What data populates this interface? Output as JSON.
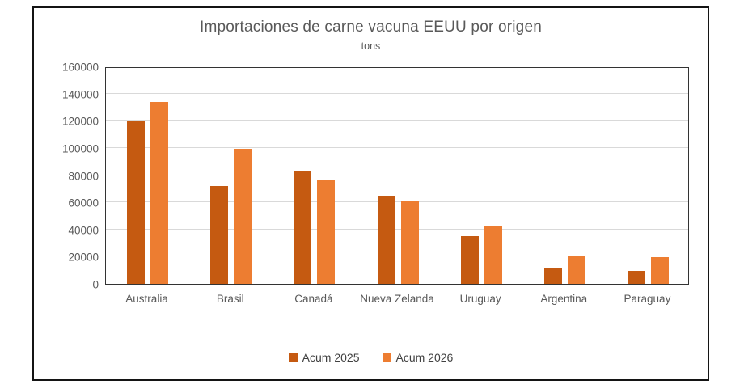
{
  "figure": {
    "title": "Importaciones de carne vacuna EEUU por origen",
    "subtitle": "tons"
  },
  "chart_data": {
    "type": "bar",
    "title": "Importaciones de carne vacuna EEUU por origen",
    "subtitle": "tons",
    "categories": [
      "Australia",
      "Brasil",
      "Canadá",
      "Nueva Zelanda",
      "Uruguay",
      "Argentina",
      "Paraguay"
    ],
    "series": [
      {
        "name": "Acum 2025",
        "color": "#C55A11",
        "values": [
          120000,
          72000,
          83000,
          65000,
          35000,
          12000,
          9500
        ]
      },
      {
        "name": "Acum 2026",
        "color": "#ED7D31",
        "values": [
          134000,
          99500,
          77000,
          61000,
          43000,
          21000,
          19500
        ]
      }
    ],
    "xlabel": "",
    "ylabel": "",
    "ylim": [
      0,
      160000
    ],
    "ytick_step": 20000,
    "ytick_labels": [
      "0",
      "20000",
      "40000",
      "60000",
      "80000",
      "100000",
      "120000",
      "140000",
      "160000"
    ],
    "grid": true,
    "legend_position": "bottom",
    "colors": {
      "gridline": "#D9D9D9",
      "plot_border": "#333333",
      "figure_border": "#141414",
      "text": "#595959",
      "legend_text": "#404040"
    }
  }
}
